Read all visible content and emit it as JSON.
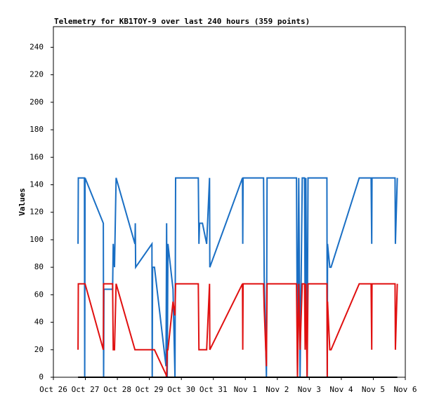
{
  "chart_data": {
    "type": "line",
    "title": "Telemetry for KB1TOY-9 over last 240 hours (359 points)",
    "y_label": "Values",
    "x": [
      0.77,
      0.78,
      0.97,
      0.98,
      0.99,
      1.56,
      1.57,
      1.58,
      1.85,
      1.87,
      1.91,
      1.96,
      2.55,
      2.56,
      2.57,
      3.08,
      3.09,
      3.1,
      3.16,
      3.52,
      3.54,
      3.56,
      3.58,
      3.74,
      3.8,
      3.82,
      4.53,
      4.55,
      4.57,
      4.66,
      4.79,
      4.88,
      4.89,
      5.91,
      5.92,
      5.93,
      6.57,
      6.59,
      6.66,
      6.68,
      7.6,
      7.63,
      7.67,
      7.71,
      7.78,
      7.85,
      7.87,
      7.89,
      7.93,
      7.96,
      8.55,
      8.56,
      8.57,
      8.64,
      8.68,
      9.56,
      9.93,
      9.95,
      9.96,
      10.68,
      10.69,
      10.75
    ],
    "series": [
      {
        "color": "#1a6fc4",
        "values": [
          97,
          145,
          145,
          0,
          145,
          112,
          0,
          64,
          64,
          97,
          80,
          145,
          97,
          112,
          80,
          97,
          0,
          80,
          80,
          8,
          112,
          0,
          97,
          64,
          0,
          145,
          145,
          97,
          112,
          112,
          97,
          145,
          80,
          145,
          97,
          145,
          145,
          73,
          0,
          145,
          145,
          0,
          145,
          0,
          145,
          145,
          40,
          145,
          0,
          145,
          145,
          0,
          97,
          80,
          80,
          145,
          145,
          97,
          145,
          145,
          97,
          145
        ]
      },
      {
        "color": "#e01010",
        "values": [
          20,
          68,
          68,
          68,
          68,
          20,
          68,
          68,
          68,
          20,
          20,
          68,
          20,
          20,
          20,
          20,
          20,
          20,
          20,
          2,
          0,
          20,
          20,
          55,
          45,
          68,
          68,
          20,
          20,
          20,
          20,
          68,
          20,
          68,
          20,
          68,
          68,
          50,
          8,
          68,
          68,
          0,
          68,
          20,
          68,
          68,
          20,
          68,
          0,
          68,
          68,
          0,
          55,
          20,
          20,
          68,
          68,
          20,
          68,
          68,
          20,
          68
        ]
      },
      {
        "color": "#000000",
        "values": [
          0,
          0,
          0,
          0,
          0,
          0,
          0,
          0,
          0,
          0,
          0,
          0,
          0,
          0,
          0,
          0,
          0,
          0,
          0,
          0,
          0,
          0,
          0,
          0,
          0,
          0,
          0,
          0,
          0,
          0,
          0,
          0,
          0,
          0,
          0,
          0,
          0,
          0,
          0,
          0,
          0,
          0,
          0,
          0,
          0,
          0,
          0,
          0,
          0,
          0,
          0,
          0,
          0,
          0,
          0,
          0,
          0,
          0,
          0,
          0,
          0,
          0
        ]
      }
    ],
    "xlim": [
      0,
      11
    ],
    "xticks": [
      {
        "value": 0,
        "label": "Oct 26"
      },
      {
        "value": 1,
        "label": "Oct 27"
      },
      {
        "value": 2,
        "label": "Oct 28"
      },
      {
        "value": 3,
        "label": "Oct 29"
      },
      {
        "value": 4,
        "label": "Oct 30"
      },
      {
        "value": 5,
        "label": "Oct 31"
      },
      {
        "value": 6,
        "label": "Nov 1"
      },
      {
        "value": 7,
        "label": "Nov 2"
      },
      {
        "value": 8,
        "label": "Nov 3"
      },
      {
        "value": 9,
        "label": "Nov 4"
      },
      {
        "value": 10,
        "label": "Nov 5"
      },
      {
        "value": 11,
        "label": "Nov 6"
      }
    ],
    "ylim": [
      0,
      255
    ],
    "yticks": [
      0,
      20,
      40,
      60,
      80,
      100,
      120,
      140,
      160,
      180,
      200,
      220,
      240
    ]
  }
}
